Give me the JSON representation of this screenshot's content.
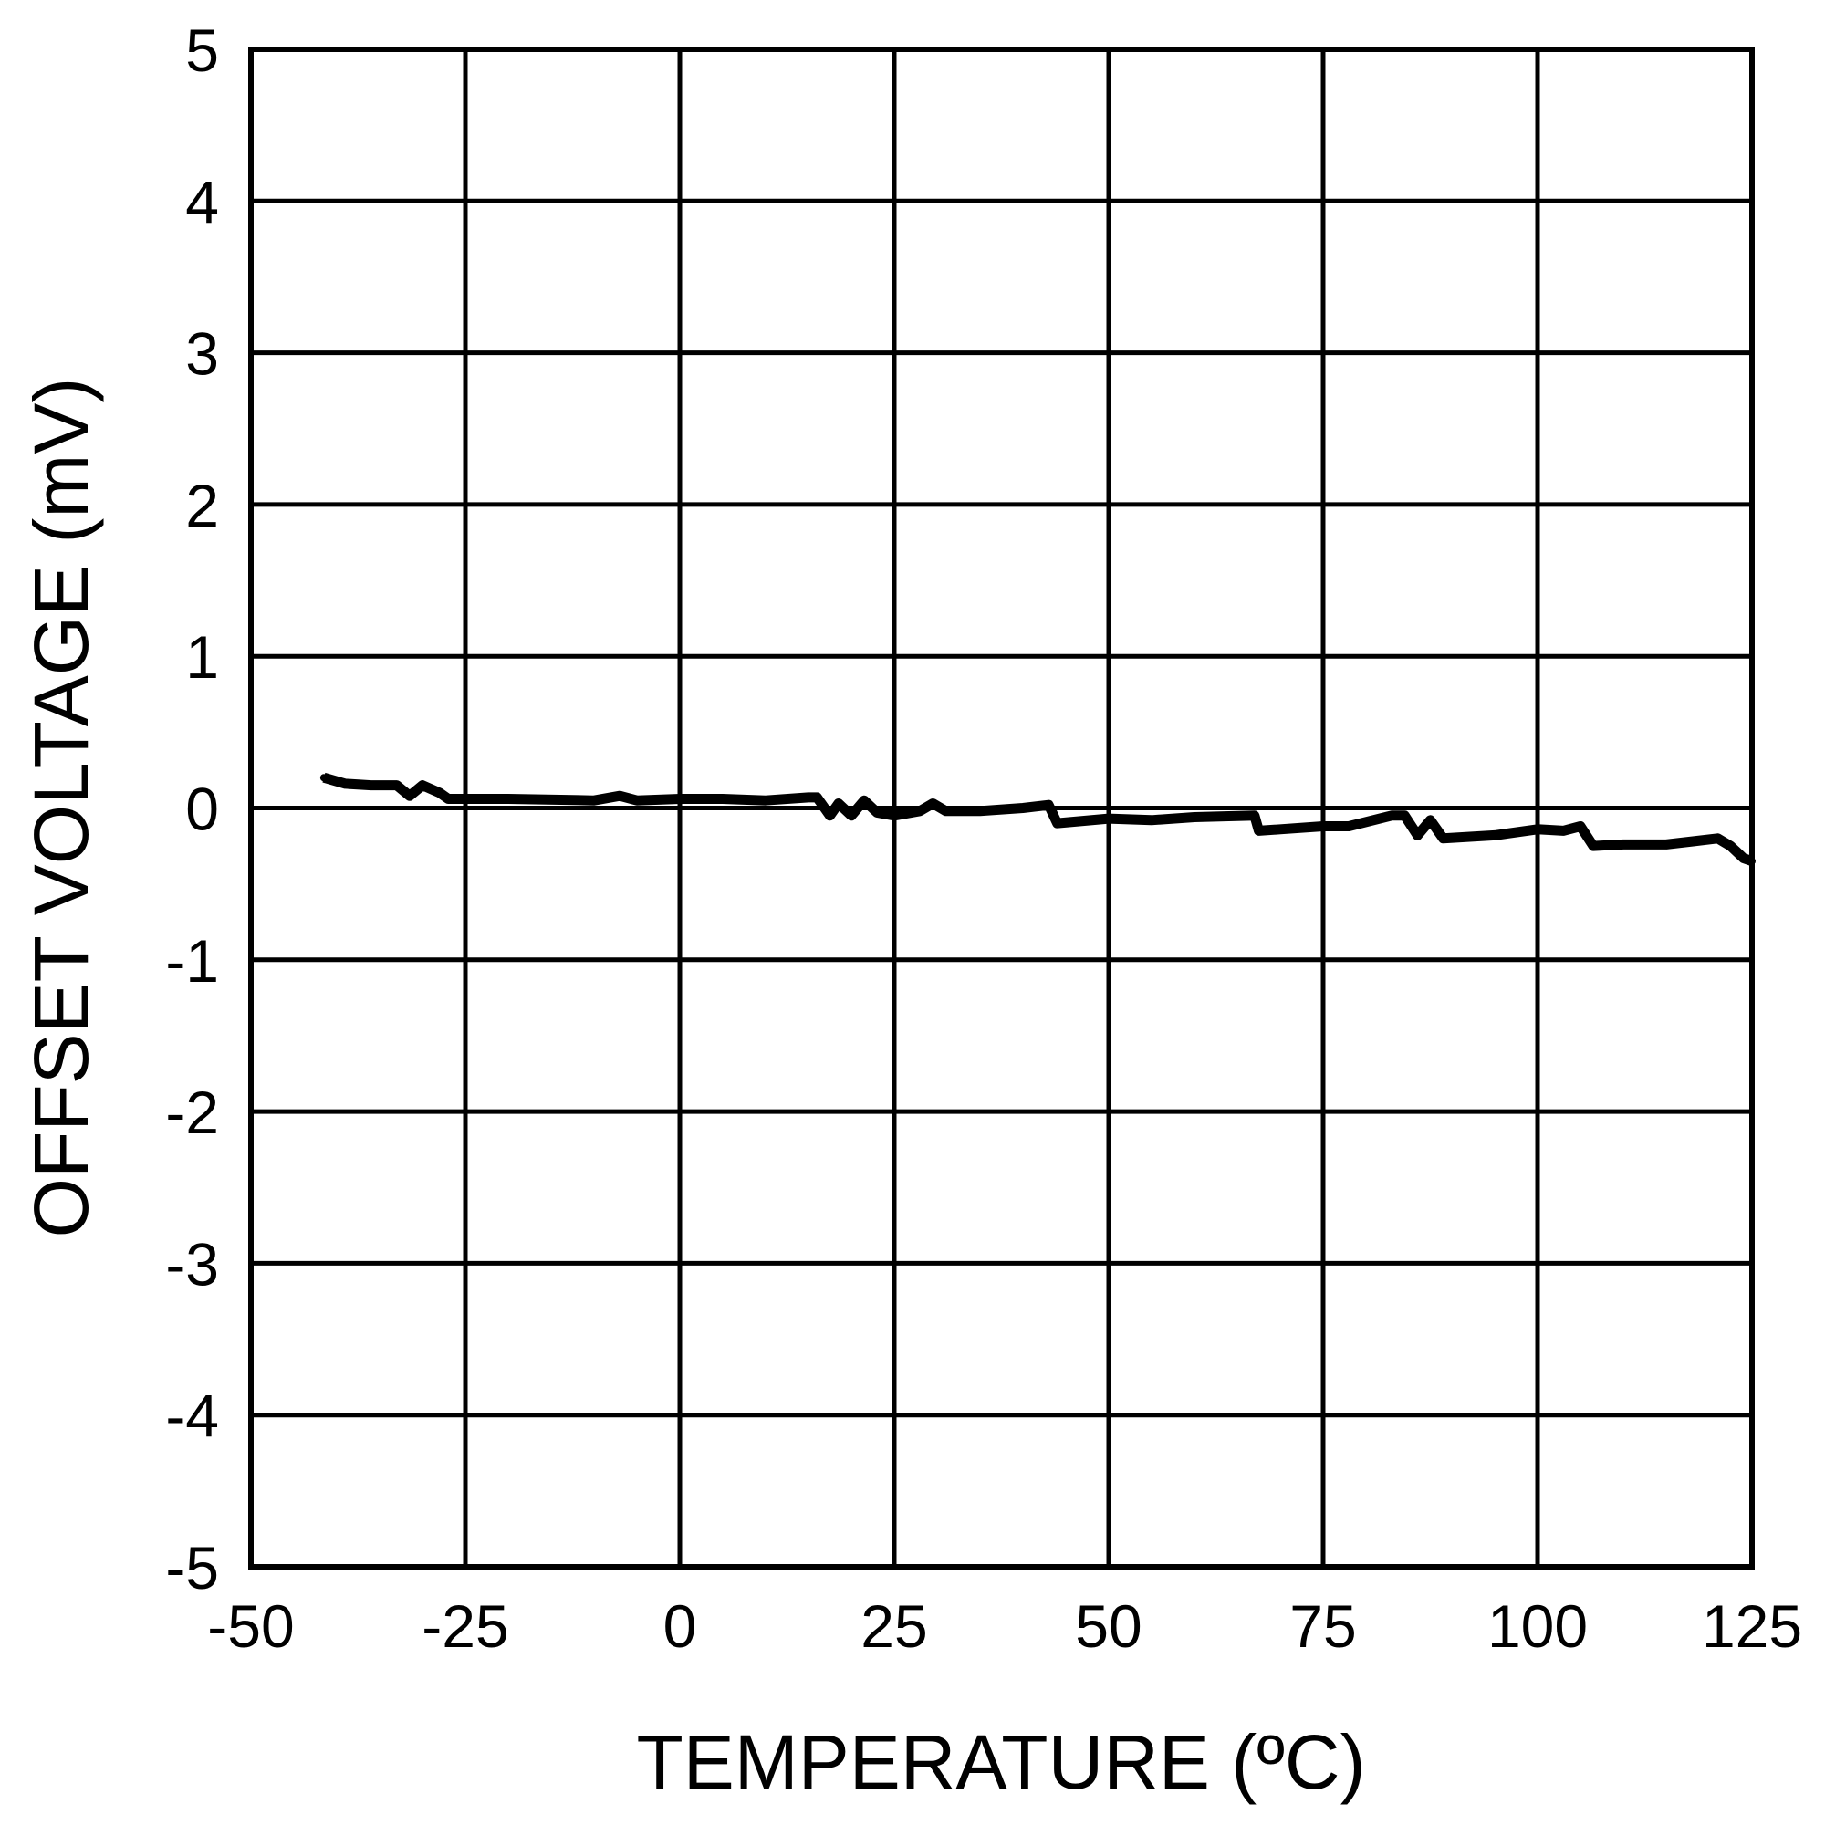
{
  "chart_data": {
    "type": "line",
    "title": "",
    "xlabel": "TEMPERATURE (ºC)",
    "ylabel": "OFFSET VOLTAGE (mV)",
    "xlim": [
      -50,
      125
    ],
    "ylim": [
      -5,
      5
    ],
    "xticks": [
      "-50",
      "-25",
      "0",
      "25",
      "50",
      "75",
      "100",
      "125"
    ],
    "yticks": [
      "5",
      "4",
      "3",
      "2",
      "1",
      "0",
      "-1",
      "-2",
      "-3",
      "-4",
      "-5"
    ],
    "grid": true,
    "line_color": "#000000",
    "series": [
      {
        "x": [
          -41.5,
          -39,
          -36,
          -33,
          -31.5,
          -30,
          -28,
          -27,
          -20,
          -10,
          -7,
          -5,
          0,
          5,
          10,
          15,
          16,
          17.5,
          18.5,
          20,
          21.5,
          23,
          25,
          28,
          29.5,
          31,
          35,
          40,
          43,
          44,
          50,
          55,
          60,
          67,
          67.5,
          70,
          75,
          78,
          83,
          84.5,
          86,
          87.5,
          89,
          95,
          100,
          103,
          105,
          106.5,
          110,
          115,
          118,
          121,
          122.5,
          124,
          125
        ],
        "y": [
          0.2,
          0.16,
          0.15,
          0.15,
          0.08,
          0.15,
          0.1,
          0.06,
          0.06,
          0.05,
          0.08,
          0.05,
          0.06,
          0.06,
          0.05,
          0.07,
          0.07,
          -0.05,
          0.03,
          -0.05,
          0.05,
          -0.03,
          -0.05,
          -0.02,
          0.03,
          -0.02,
          -0.02,
          0.0,
          0.02,
          -0.1,
          -0.07,
          -0.08,
          -0.06,
          -0.05,
          -0.15,
          -0.14,
          -0.12,
          -0.12,
          -0.05,
          -0.05,
          -0.18,
          -0.08,
          -0.2,
          -0.18,
          -0.14,
          -0.15,
          -0.12,
          -0.25,
          -0.24,
          -0.24,
          -0.22,
          -0.2,
          -0.25,
          -0.33,
          -0.35
        ]
      }
    ]
  }
}
